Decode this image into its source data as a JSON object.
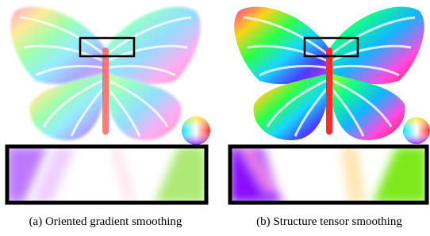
{
  "figure": {
    "panels": [
      {
        "caption": "(a) Oriented gradient smoothing"
      },
      {
        "caption": "(b) Structure tensor smoothing"
      }
    ]
  }
}
